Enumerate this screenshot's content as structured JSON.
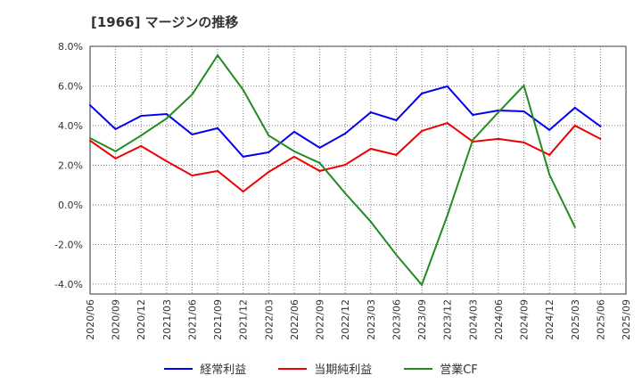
{
  "chart_data": {
    "type": "line",
    "title": "[1966]  マージンの推移",
    "xlabel": "",
    "ylabel": "",
    "ylim": [
      -4.5,
      8.0
    ],
    "yticks": [
      8,
      6,
      4,
      2,
      0,
      -2,
      -4
    ],
    "ytick_labels": [
      "8.0%",
      "6.0%",
      "4.0%",
      "2.0%",
      "0.0%",
      "-2.0%",
      "-4.0%"
    ],
    "grid": true,
    "legend_position": "bottom",
    "categories": [
      "2020/06",
      "2020/09",
      "2020/12",
      "2021/03",
      "2021/06",
      "2021/09",
      "2021/12",
      "2022/03",
      "2022/06",
      "2022/09",
      "2022/12",
      "2023/03",
      "2023/06",
      "2023/09",
      "2023/12",
      "2024/03",
      "2024/06",
      "2024/09",
      "2024/12",
      "2025/03",
      "2025/06",
      "2025/09"
    ],
    "series": [
      {
        "name": "経常利益",
        "color": "#0000ee",
        "values": [
          5.03,
          3.82,
          4.49,
          4.58,
          3.55,
          3.87,
          2.43,
          2.65,
          3.69,
          2.88,
          3.6,
          4.67,
          4.27,
          5.62,
          5.98,
          4.54,
          4.76,
          4.72,
          3.78,
          4.9,
          3.96,
          null
        ]
      },
      {
        "name": "当期純利益",
        "color": "#ee0000",
        "values": [
          3.24,
          2.34,
          2.97,
          2.2,
          1.48,
          1.71,
          0.67,
          1.66,
          2.43,
          1.71,
          2.02,
          2.83,
          2.52,
          3.73,
          4.13,
          3.19,
          3.33,
          3.15,
          2.52,
          4.0,
          3.33,
          null
        ]
      },
      {
        "name": "営業CF",
        "color": "#228b22",
        "values": [
          3.37,
          2.7,
          3.5,
          4.36,
          5.57,
          7.55,
          5.8,
          3.5,
          2.7,
          2.11,
          0.58,
          -0.85,
          -2.52,
          -4.04,
          -0.54,
          3.28,
          4.67,
          6.02,
          1.53,
          -1.12,
          null,
          null
        ]
      }
    ]
  }
}
